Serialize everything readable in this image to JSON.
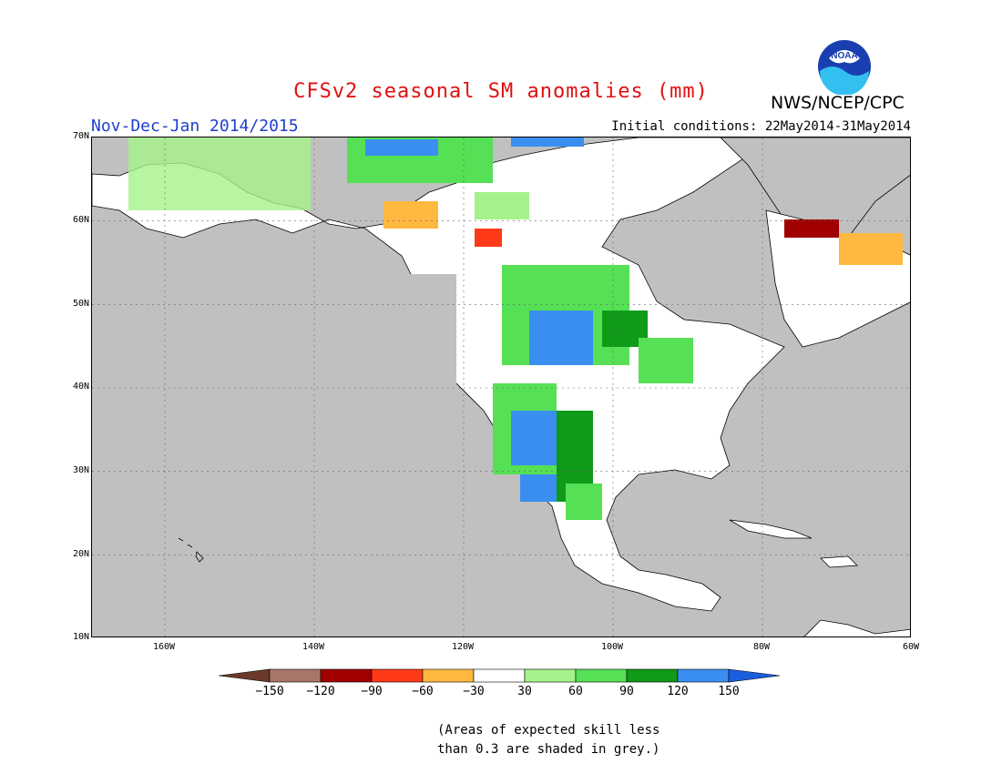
{
  "title": "CFSv2 seasonal SM anomalies (mm)",
  "period": "Nov-Dec-Jan 2014/2015",
  "initial_conditions": "Initial conditions: 22May2014-31May2014",
  "agency": "NWS/NCEP/CPC",
  "logo_text": "NOAA",
  "lat_labels": [
    "70N",
    "60N",
    "50N",
    "40N",
    "30N",
    "20N",
    "10N"
  ],
  "lon_labels": [
    "160W",
    "140W",
    "120W",
    "100W",
    "80W",
    "60W"
  ],
  "colorbar": {
    "labels": [
      "-150",
      "-120",
      "-90",
      "-60",
      "-30",
      "30",
      "60",
      "90",
      "120",
      "150"
    ],
    "colors": [
      "#6b3a2a",
      "#a87668",
      "#a00000",
      "#ff3a18",
      "#ffb840",
      "#ffffff",
      "#a6f28a",
      "#55e055",
      "#0f9a18",
      "#3a8ef0",
      "#1a5ee0"
    ]
  },
  "note_line1": "(Areas of expected skill less",
  "note_line2": "than 0.3 are shaded in grey.)"
}
